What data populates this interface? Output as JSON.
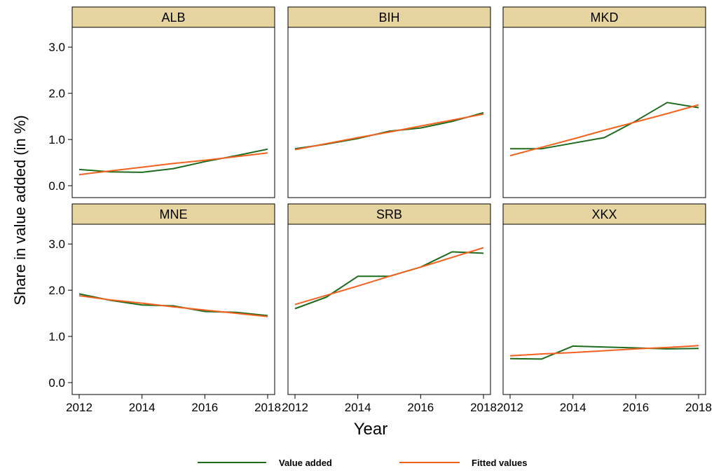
{
  "chart_data": {
    "type": "line",
    "layout": "facet-grid",
    "ylabel": "Share in value added (in %)",
    "xlabel": "Year",
    "x": [
      2012,
      2013,
      2014,
      2015,
      2016,
      2017,
      2018
    ],
    "xticks": [
      "2012",
      "2014",
      "2016",
      "2018"
    ],
    "yticks": [
      "0.0",
      "1.0",
      "2.0",
      "3.0"
    ],
    "ylim": [
      0,
      3.2
    ],
    "xlim": [
      2012,
      2018
    ],
    "grid": false,
    "legend_position": "bottom",
    "legend": [
      "Value added",
      "Fitted values"
    ],
    "colors": {
      "value_added": "#1e6b1e",
      "fitted": "#f4611f",
      "strip": "#e6d5a0"
    },
    "panels": [
      {
        "title": "ALB",
        "series": [
          {
            "name": "Value added",
            "values": [
              0.35,
              0.3,
              0.29,
              0.37,
              0.52,
              0.65,
              0.79
            ]
          },
          {
            "name": "Fitted values",
            "values": [
              0.24,
              0.32,
              0.4,
              0.48,
              0.55,
              0.63,
              0.71
            ]
          }
        ]
      },
      {
        "title": "BIH",
        "series": [
          {
            "name": "Value added",
            "values": [
              0.8,
              0.9,
              1.02,
              1.18,
              1.25,
              1.39,
              1.58
            ]
          },
          {
            "name": "Fitted values",
            "values": [
              0.78,
              0.91,
              1.04,
              1.16,
              1.29,
              1.42,
              1.55
            ]
          }
        ]
      },
      {
        "title": "MKD",
        "series": [
          {
            "name": "Value added",
            "values": [
              0.8,
              0.8,
              0.92,
              1.04,
              1.4,
              1.8,
              1.69
            ]
          },
          {
            "name": "Fitted values",
            "values": [
              0.65,
              0.83,
              1.01,
              1.2,
              1.38,
              1.56,
              1.75
            ]
          }
        ]
      },
      {
        "title": "MNE",
        "series": [
          {
            "name": "Value added",
            "values": [
              1.92,
              1.78,
              1.68,
              1.66,
              1.54,
              1.52,
              1.45
            ]
          },
          {
            "name": "Fitted values",
            "values": [
              1.88,
              1.79,
              1.72,
              1.64,
              1.57,
              1.5,
              1.43
            ]
          }
        ]
      },
      {
        "title": "SRB",
        "series": [
          {
            "name": "Value added",
            "values": [
              1.6,
              1.85,
              2.3,
              2.3,
              2.5,
              2.83,
              2.8
            ]
          },
          {
            "name": "Fitted values",
            "values": [
              1.69,
              1.89,
              2.09,
              2.3,
              2.5,
              2.71,
              2.92
            ]
          }
        ]
      },
      {
        "title": "XKX",
        "series": [
          {
            "name": "Value added",
            "values": [
              0.52,
              0.51,
              0.79,
              0.77,
              0.75,
              0.73,
              0.74
            ]
          },
          {
            "name": "Fitted values",
            "values": [
              0.58,
              0.62,
              0.65,
              0.69,
              0.73,
              0.76,
              0.8
            ]
          }
        ]
      }
    ]
  }
}
